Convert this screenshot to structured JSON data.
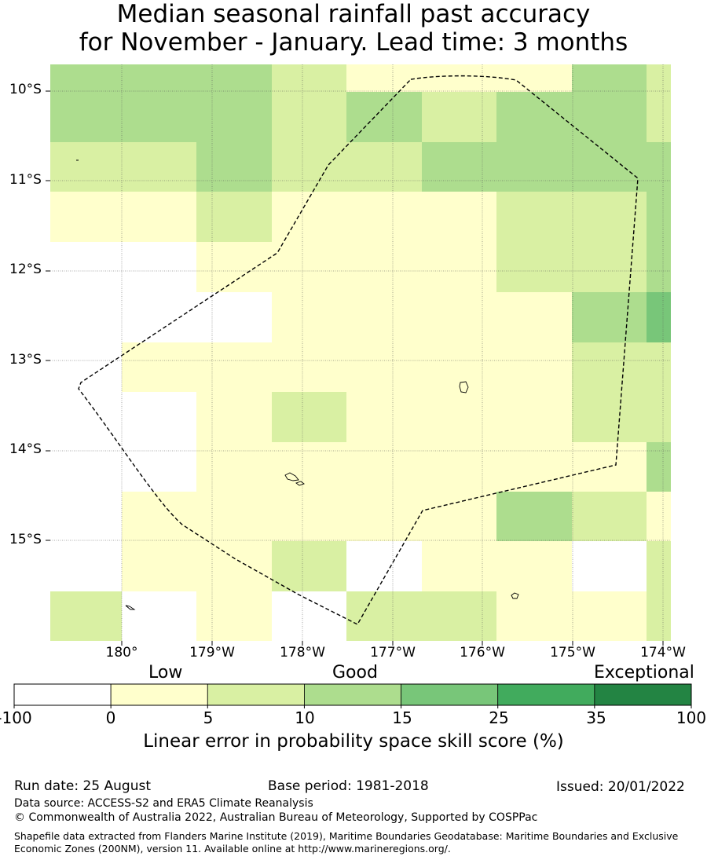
{
  "title_line1": "Median seasonal rainfall past accuracy",
  "title_line2": "for November - January. Lead time: 3 months",
  "map": {
    "lat_labels": [
      "10°S",
      "11°S",
      "12°S",
      "13°S",
      "14°S",
      "15°S"
    ],
    "lon_labels": [
      "180°",
      "179°W",
      "178°W",
      "177°W",
      "176°W",
      "175°W",
      "174°W"
    ],
    "grid_rows": [
      [
        3,
        3,
        3,
        2,
        1,
        1,
        1,
        3,
        2
      ],
      [
        3,
        3,
        3,
        2,
        3,
        2,
        3,
        3,
        2
      ],
      [
        2,
        2,
        3,
        2,
        2,
        3,
        3,
        3,
        3
      ],
      [
        1,
        1,
        2,
        1,
        1,
        1,
        2,
        2,
        3
      ],
      [
        0,
        0,
        1,
        1,
        1,
        1,
        2,
        2,
        3
      ],
      [
        0,
        0,
        0,
        1,
        1,
        1,
        1,
        3,
        4
      ],
      [
        0,
        1,
        1,
        1,
        1,
        1,
        1,
        2,
        2
      ],
      [
        0,
        0,
        1,
        2,
        1,
        1,
        1,
        2,
        2
      ],
      [
        0,
        0,
        1,
        1,
        1,
        1,
        1,
        1,
        3
      ],
      [
        0,
        1,
        1,
        1,
        1,
        1,
        3,
        2,
        1
      ],
      [
        0,
        1,
        1,
        2,
        0,
        1,
        1,
        0,
        2
      ],
      [
        2,
        0,
        1,
        0,
        2,
        2,
        1,
        1,
        2
      ]
    ]
  },
  "colorbar": {
    "category_labels": [
      "Low",
      "Good",
      "Exceptional"
    ],
    "ticks": [
      "-100",
      "0",
      "5",
      "10",
      "15",
      "25",
      "35",
      "100"
    ],
    "colors": [
      "#ffffff",
      "#ffffcc",
      "#d9f0a3",
      "#addd8e",
      "#78c679",
      "#41ab5d",
      "#238443"
    ],
    "axis_label": "Linear error in probability space skill score (%)"
  },
  "footer": {
    "run_date": "Run date: 25 August",
    "base_period": "Base period: 1981-2018",
    "issued": "Issued: 20/01/2022",
    "data_source": "Data source: ACCESS-S2 and ERA5 Climate Reanalysis",
    "copyright": "© Commonwealth of Australia 2022, Australian Bureau of Meteorology, Supported by COSPPac",
    "shapefile": "Shapefile data extracted from Flanders Marine Institute (2019), Maritime Boundaries Geodatabase: Maritime Boundaries and Exclusive Economic Zones (200NM), version 11. Available online at http://www.marineregions.org/."
  }
}
